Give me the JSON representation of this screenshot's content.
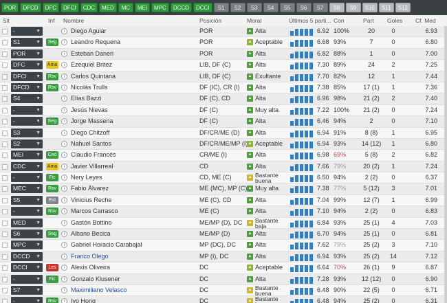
{
  "tabs": [
    {
      "label": "POR",
      "style": "green"
    },
    {
      "label": "DFCD",
      "style": "green"
    },
    {
      "label": "DFC",
      "style": "green"
    },
    {
      "label": "DFCI",
      "style": "green"
    },
    {
      "label": "CDC",
      "style": "green"
    },
    {
      "label": "MED",
      "style": "green"
    },
    {
      "label": "MC",
      "style": "green"
    },
    {
      "label": "MEI",
      "style": "green"
    },
    {
      "label": "MPC",
      "style": "green"
    },
    {
      "label": "DCCD",
      "style": "green"
    },
    {
      "label": "DCCI",
      "style": "green"
    },
    {
      "label": "S1",
      "style": "grey"
    },
    {
      "label": "S2",
      "style": "grey"
    },
    {
      "label": "S3",
      "style": "grey"
    },
    {
      "label": "S4",
      "style": "grey"
    },
    {
      "label": "S5",
      "style": "grey"
    },
    {
      "label": "S6",
      "style": "grey"
    },
    {
      "label": "S7",
      "style": "grey"
    },
    {
      "label": "S8",
      "style": "light"
    },
    {
      "label": "S9",
      "style": "light"
    },
    {
      "label": "S10",
      "style": "light"
    },
    {
      "label": "S11",
      "style": "light"
    },
    {
      "label": "S12",
      "style": "light"
    }
  ],
  "columns": {
    "sit": "Sit",
    "inf": "Inf",
    "nombre": "Nombre",
    "posicion": "Posición",
    "moral": "Moral",
    "ultimos": "Últimos 5 parti...",
    "con": "Con",
    "part": "Part",
    "goles": "Goles",
    "cfmed": "Cf. Med"
  },
  "rows": [
    {
      "sit": "-",
      "inf": "",
      "name": "Diego Aguiar",
      "pos": "POR",
      "moral": "Alta",
      "mc": "green",
      "form": [
        0.6,
        0.8,
        0.8,
        0.8,
        0.8
      ],
      "avg": "6.92",
      "con": "100%",
      "part": "20",
      "goles": "0",
      "cf": "6.93"
    },
    {
      "sit": "S1",
      "inf": "Seg",
      "ic": "green",
      "name": "Leandro Requena",
      "pos": "POR",
      "moral": "Aceptable",
      "mc": "lime",
      "form": [
        0.6,
        0.8,
        0.8,
        0.8,
        0.8
      ],
      "avg": "6.68",
      "con": "93%",
      "part": "7",
      "goles": "0",
      "cf": "6.80"
    },
    {
      "sit": "POR",
      "inf": "",
      "name": "Esteban Daneri",
      "pos": "POR",
      "moral": "Alta",
      "mc": "green",
      "form": [
        0.6,
        0.8,
        0.8,
        0.8,
        0.8
      ],
      "avg": "6.82",
      "con": "88%",
      "part": "1",
      "goles": "0",
      "cf": "7.00"
    },
    {
      "sit": "DFC",
      "inf": "Ama",
      "ic": "yellow",
      "name": "Ezequiel Britez",
      "pos": "LIB, DF (C)",
      "moral": "Alta",
      "mc": "green",
      "form": [
        0.6,
        0.8,
        0.8,
        0.8,
        0.8
      ],
      "avg": "7.30",
      "con": "89%",
      "part": "24",
      "goles": "2",
      "cf": "7.25"
    },
    {
      "sit": "DFCI",
      "inf": "Rsv",
      "ic": "green",
      "name": "Carlos Quintana",
      "pos": "LIB, DF (C)",
      "moral": "Exultante",
      "mc": "green",
      "form": [
        0.6,
        0.8,
        0.8,
        0.8,
        0.8
      ],
      "avg": "7.70",
      "con": "82%",
      "part": "12",
      "goles": "1",
      "cf": "7.44"
    },
    {
      "sit": "DFCD",
      "inf": "Rsv",
      "ic": "green",
      "name": "Nicolás Trulls",
      "pos": "DF (IC), CR (I)",
      "moral": "Alta",
      "mc": "green",
      "form": [
        0.6,
        0.8,
        0.8,
        0.8,
        0.8
      ],
      "avg": "7.38",
      "con": "85%",
      "part": "17 (1)",
      "goles": "1",
      "cf": "7.36"
    },
    {
      "sit": "S4",
      "inf": "",
      "name": "Elías Bazzi",
      "pos": "DF (C), CD",
      "moral": "Alta",
      "mc": "green",
      "form": [
        0.6,
        0.8,
        0.8,
        0.8,
        0.8
      ],
      "avg": "6.96",
      "con": "98%",
      "part": "21 (2)",
      "goles": "2",
      "cf": "7.40"
    },
    {
      "sit": "-",
      "inf": "",
      "name": "Jesús Nievas",
      "pos": "DF (C)",
      "moral": "Muy alta",
      "mc": "green",
      "form": [
        0.6,
        0.8,
        0.8,
        0.8,
        0.8
      ],
      "avg": "7.22",
      "con": "100%",
      "part": "21 (2)",
      "goles": "0",
      "cf": "7.24"
    },
    {
      "sit": "-",
      "inf": "Seg",
      "ic": "green",
      "name": "Jorge Massena",
      "pos": "DF (C)",
      "moral": "Alta",
      "mc": "green",
      "form": [
        0.6,
        0.8,
        0.8,
        0.8,
        0.8
      ],
      "avg": "6.46",
      "con": "94%",
      "part": "2",
      "goles": "0",
      "cf": "7.10"
    },
    {
      "sit": "S3",
      "inf": "",
      "name": "Diego Chitzoff",
      "pos": "DF/CR/ME (D)",
      "moral": "Alta",
      "mc": "green",
      "form": [
        0.6,
        0.8,
        0.8,
        0.8,
        0.8
      ],
      "avg": "6.94",
      "con": "91%",
      "part": "8 (8)",
      "goles": "1",
      "cf": "6.95"
    },
    {
      "sit": "S2",
      "inf": "",
      "name": "Nahuel Santos",
      "pos": "DF/CR/ME/MP (I)",
      "moral": "Aceptable",
      "mc": "lime",
      "form": [
        0.6,
        0.8,
        0.8,
        0.8,
        0.8
      ],
      "avg": "6.94",
      "con": "93%",
      "part": "14 (12)",
      "goles": "1",
      "cf": "6.80"
    },
    {
      "sit": "MEI",
      "inf": "Ced",
      "ic": "green",
      "name": "Claudio Francés",
      "pos": "CR/ME (I)",
      "moral": "Alta",
      "mc": "green",
      "form": [
        0.6,
        0.8,
        0.8,
        0.8,
        0.8
      ],
      "avg": "6.98",
      "con": "69%",
      "conStyle": "warn",
      "part": "5 (8)",
      "goles": "2",
      "cf": "6.82"
    },
    {
      "sit": "CDC",
      "inf": "Ama",
      "ic": "yellow",
      "name": "Javier Villarreal",
      "pos": "CD",
      "moral": "Alta",
      "mc": "green",
      "form": [
        0.6,
        0.8,
        0.8,
        0.8,
        0.8
      ],
      "avg": "7.66",
      "con": "79%",
      "conStyle": "low",
      "part": "20 (2)",
      "goles": "1",
      "cf": "7.24"
    },
    {
      "sit": "-",
      "inf": "Fic",
      "ic": "green",
      "name": "Nery Leyes",
      "pos": "CD, ME (C)",
      "moral": "Bastante buena",
      "mc": "yellow",
      "form": [
        0.6,
        0.8,
        0.8,
        0.8,
        0.8
      ],
      "avg": "6.50",
      "con": "94%",
      "part": "2 (2)",
      "goles": "0",
      "cf": "6.37"
    },
    {
      "sit": "MEC",
      "inf": "Rsv",
      "ic": "green",
      "name": "Fabio Álvarez",
      "pos": "ME (MC), MP (C)",
      "moral": "Muy alta",
      "mc": "green",
      "form": [
        0.6,
        0.8,
        0.8,
        0.8,
        0.8
      ],
      "avg": "7.38",
      "con": "77%",
      "conStyle": "low",
      "part": "5 (12)",
      "goles": "3",
      "cf": "7.01"
    },
    {
      "sit": "S5",
      "inf": "Ext",
      "ic": "grey",
      "name": "Vinicius Reche",
      "pos": "ME (C), CD",
      "moral": "Alta",
      "mc": "green",
      "form": [
        0.6,
        0.8,
        0.8,
        0.8,
        0.8
      ],
      "avg": "7.04",
      "con": "99%",
      "part": "12 (7)",
      "goles": "1",
      "cf": "6.99"
    },
    {
      "sit": "-",
      "inf": "Rsv",
      "ic": "green",
      "name": "Marcos Carrasco",
      "pos": "ME (C)",
      "moral": "Alta",
      "mc": "green",
      "form": [
        0.6,
        0.8,
        0.8,
        0.8,
        0.8
      ],
      "avg": "7.10",
      "con": "94%",
      "part": "2 (2)",
      "goles": "0",
      "cf": "6.83"
    },
    {
      "sit": "MED",
      "inf": "",
      "name": "Gastón Bottino",
      "pos": "ME/MP (D), DC",
      "moral": "Bastante baja",
      "mc": "yellow",
      "form": [
        0.6,
        0.8,
        0.8,
        0.8,
        0.8
      ],
      "avg": "6.84",
      "con": "93%",
      "part": "25 (1)",
      "goles": "4",
      "cf": "7.03"
    },
    {
      "sit": "S6",
      "inf": "Seg",
      "ic": "green",
      "name": "Albano Becica",
      "pos": "ME/MP (D)",
      "moral": "Alta",
      "mc": "green",
      "form": [
        0.6,
        0.8,
        0.8,
        0.8,
        0.8
      ],
      "avg": "6.70",
      "con": "94%",
      "part": "25 (1)",
      "goles": "0",
      "cf": "6.81"
    },
    {
      "sit": "MPC",
      "inf": "",
      "name": "Gabriel Horacio Carabajal",
      "pos": "MP (DC), DC",
      "moral": "Alta",
      "mc": "green",
      "form": [
        0.6,
        0.8,
        0.8,
        0.8,
        0.8
      ],
      "avg": "7.62",
      "con": "79%",
      "conStyle": "low",
      "part": "25 (2)",
      "goles": "3",
      "cf": "7.10"
    },
    {
      "sit": "DCCD",
      "inf": "",
      "name": "Franco Olego",
      "nameStyle": "blue",
      "pos": "MP (I), DC",
      "moral": "Alta",
      "mc": "green",
      "form": [
        0.6,
        0.8,
        0.8,
        0.8,
        0.8
      ],
      "avg": "6.94",
      "con": "93%",
      "part": "25 (2)",
      "goles": "14",
      "cf": "7.12"
    },
    {
      "sit": "DCCI",
      "inf": "Les",
      "ic": "red",
      "name": "Alexis Oliveira",
      "pos": "DC",
      "moral": "Aceptable",
      "mc": "lime",
      "form": [
        0.6,
        0.8,
        0.8,
        0.8,
        0.8
      ],
      "avg": "6.64",
      "con": "70%",
      "conStyle": "warn",
      "part": "26 (1)",
      "goles": "9",
      "cf": "6.87"
    },
    {
      "sit": "-",
      "inf": "Fic",
      "ic": "green",
      "name": "Gonzalo Klusener",
      "pos": "DC",
      "moral": "Alta",
      "mc": "green",
      "form": [
        0.6,
        0.8,
        0.8,
        0.8,
        0.8
      ],
      "avg": "7.28",
      "con": "93%",
      "part": "12 (12)",
      "goles": "0",
      "cf": "6.90"
    },
    {
      "sit": "S7",
      "inf": "",
      "name": "Maximiliano Velasco",
      "nameStyle": "blue",
      "pos": "DC",
      "moral": "Bastante buena",
      "mc": "yellow",
      "form": [
        0.6,
        0.8,
        0.8,
        0.8,
        0.8
      ],
      "avg": "6.48",
      "con": "90%",
      "part": "22 (5)",
      "goles": "0",
      "cf": "6.71"
    },
    {
      "sit": "-",
      "inf": "Rsv",
      "ic": "green",
      "name": "Ivo Hong",
      "pos": "DC",
      "moral": "Bastante buena",
      "mc": "yellow",
      "form": [
        0.6,
        0.8,
        0.8,
        0.8,
        0.8
      ],
      "avg": "6.48",
      "con": "94%",
      "part": "25 (2)",
      "goles": "0",
      "cf": "6.31"
    }
  ]
}
